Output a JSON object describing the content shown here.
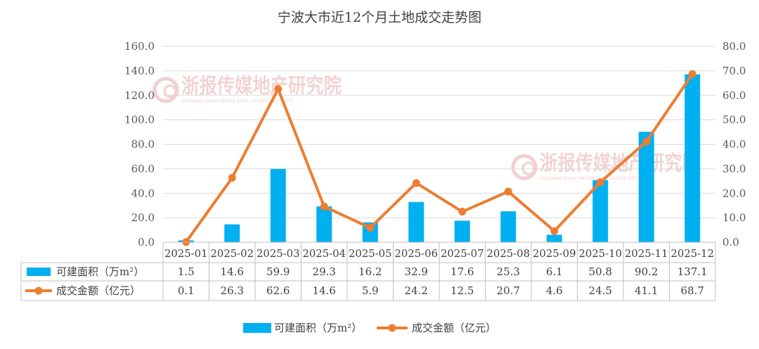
{
  "chart_data": {
    "type": "bar",
    "title": "宁波大市近12个月土地成交走势图",
    "categories": [
      "2025-01",
      "2025-02",
      "2025-03",
      "2025-04",
      "2025-05",
      "2025-06",
      "2025-07",
      "2025-08",
      "2025-09",
      "2025-10",
      "2025-11",
      "2025-12"
    ],
    "series": [
      {
        "name": "可建面积（万m²）",
        "type": "bar",
        "axis": "left",
        "color": "#00B0F0",
        "values": [
          1.5,
          14.6,
          59.9,
          29.3,
          16.2,
          32.9,
          17.6,
          25.3,
          6.1,
          50.8,
          90.2,
          137.1
        ],
        "labels": [
          "1.5",
          "14.6",
          "59.9",
          "29.3",
          "16.2",
          "32.9",
          "17.6",
          "25.3",
          "6.1",
          "50.8",
          "90.2",
          "137.1"
        ]
      },
      {
        "name": "成交金额（亿元）",
        "type": "line",
        "axis": "right",
        "color": "#ED7D31",
        "values": [
          0.1,
          26.3,
          62.6,
          14.6,
          5.9,
          24.2,
          12.5,
          20.7,
          4.6,
          24.5,
          41.1,
          68.7
        ],
        "labels": [
          "0.1",
          "26.3",
          "62.6",
          "14.6",
          "5.9",
          "24.2",
          "12.5",
          "20.7",
          "4.6",
          "24.5",
          "41.1",
          "68.7"
        ]
      }
    ],
    "y_left": {
      "min": 0,
      "max": 160,
      "ticks": [
        "0.0",
        "20.0",
        "40.0",
        "60.0",
        "80.0",
        "100.0",
        "120.0",
        "140.0",
        "160.0"
      ]
    },
    "y_right": {
      "min": 0,
      "max": 80,
      "ticks": [
        "0.0",
        "10.0",
        "20.0",
        "30.0",
        "40.0",
        "50.0",
        "60.0",
        "70.0",
        "80.0"
      ]
    },
    "grid": true,
    "legend": "bottom",
    "data_table": true
  },
  "watermark": {
    "text": "浙报传媒地产研究院",
    "subtext": "ZHEJIANG DAILY MEDIA REAL ESTATE INSTITUTE"
  }
}
